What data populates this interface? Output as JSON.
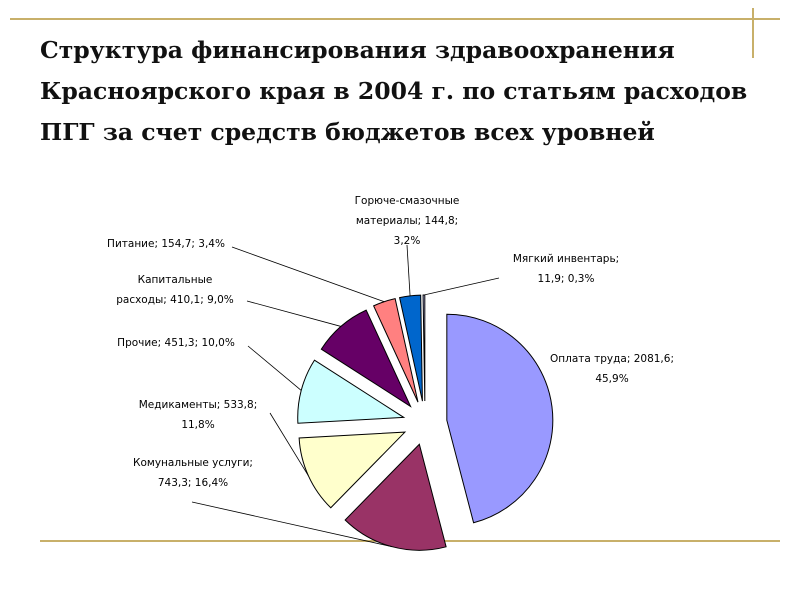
{
  "slide": {
    "title_lines": [
      "Структура финансирования здравоохранения",
      "Красноярского края в 2004 г. по статьям расходов",
      "ПГГ за счет средств бюджетов всех уровней"
    ]
  },
  "chart_data": {
    "type": "pie",
    "exploded": true,
    "categories": [
      "Оплата труда",
      "Комунальные услуги",
      "Медикаменты",
      "Прочие",
      "Капитальные расходы",
      "Питание",
      "Горюче-смазочные материалы",
      "Мягкий инвентарь"
    ],
    "values": [
      2081.6,
      743.3,
      533.8,
      451.3,
      410.1,
      154.7,
      144.8,
      11.9
    ],
    "percents": [
      45.9,
      16.4,
      11.8,
      10.0,
      9.0,
      3.4,
      3.2,
      0.3
    ],
    "colors": [
      "#9999ff",
      "#993366",
      "#ffffcc",
      "#ccffff",
      "#660066",
      "#ff8080",
      "#0066cc",
      "#ccccff"
    ],
    "labels": [
      [
        "Оплата труда; 2081,6;",
        "45,9%"
      ],
      [
        "Комунальные услуги;",
        "743,3; 16,4%"
      ],
      [
        "Медикаменты; 533,8;",
        "11,8%"
      ],
      [
        "Прочие; 451,3; 10,0%"
      ],
      [
        "Капитальные",
        "расходы; 410,1; 9,0%"
      ],
      [
        "Питание; 154,7; 3,4%"
      ],
      [
        "Горюче-смазочные",
        "материалы; 144,8;",
        "3,2%"
      ],
      [
        "Мягкий инвентарь;",
        "11,9; 0,3%"
      ]
    ]
  }
}
